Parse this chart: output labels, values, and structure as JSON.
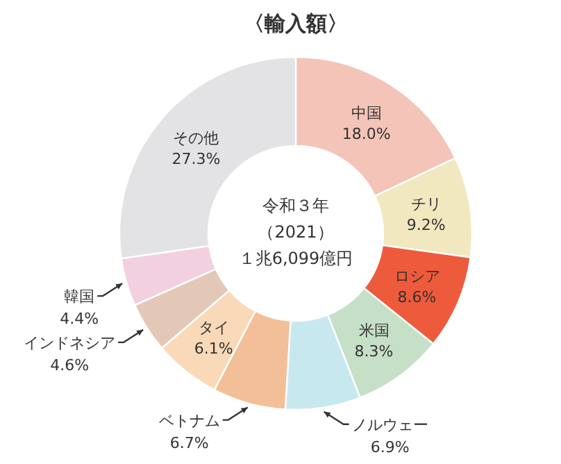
{
  "chart_data": {
    "type": "donut",
    "title": "〈輸入額〉",
    "categories": [
      "中国",
      "チリ",
      "ロシア",
      "米国",
      "ノルウェー",
      "ベトナム",
      "タイ",
      "インドネシア",
      "韓国",
      "その他"
    ],
    "values": [
      18.0,
      9.2,
      8.6,
      8.3,
      6.9,
      6.7,
      6.1,
      4.6,
      4.4,
      27.3
    ],
    "value_labels": [
      "18.0%",
      "9.2%",
      "8.6%",
      "8.3%",
      "6.9%",
      "6.7%",
      "6.1%",
      "4.6%",
      "4.4%",
      "27.3%"
    ],
    "colors": [
      "#f4c4b8",
      "#f1e8c0",
      "#ee5a3c",
      "#c6e0c8",
      "#c8e8f0",
      "#f2bf98",
      "#fad9b8",
      "#e3c8b8",
      "#f2d0e0",
      "#e3e3e5"
    ],
    "annotations": [
      "令和３年",
      "（2021）",
      "１兆6,099億円"
    ]
  }
}
